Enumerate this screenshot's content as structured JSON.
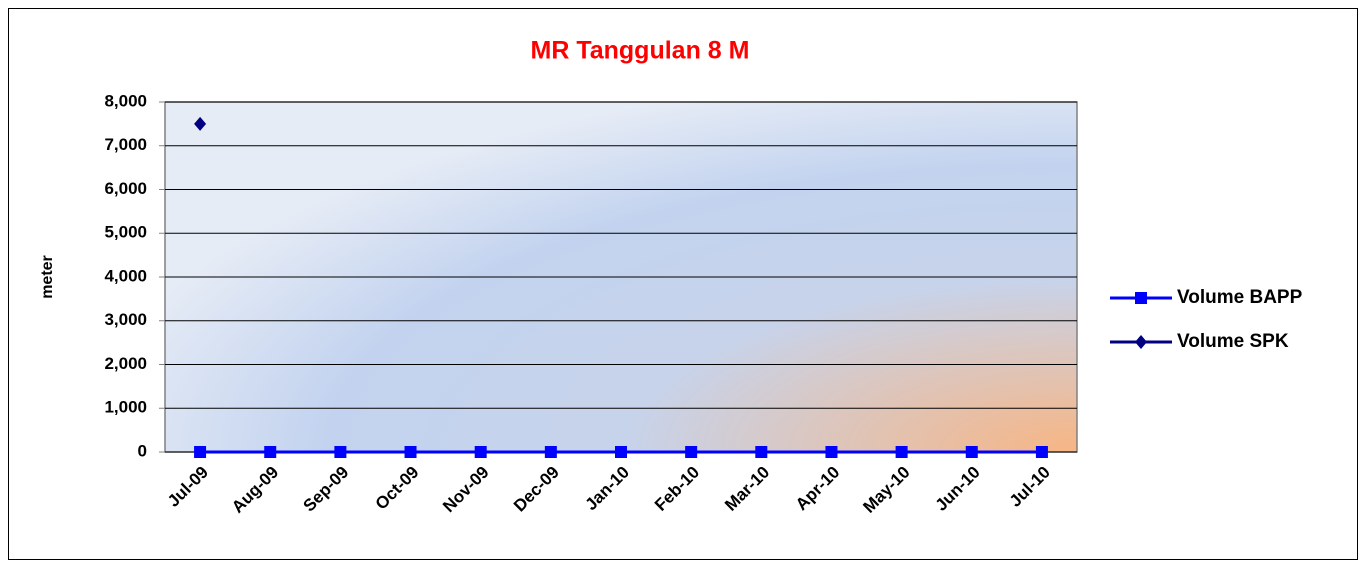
{
  "chart_data": {
    "type": "line",
    "title": "MR Tanggulan 8 M",
    "y_label": "meter",
    "categories": [
      "Jul-09",
      "Aug-09",
      "Sep-09",
      "Oct-09",
      "Nov-09",
      "Dec-09",
      "Jan-10",
      "Feb-10",
      "Mar-10",
      "Apr-10",
      "May-10",
      "Jun-10",
      "Jul-10"
    ],
    "series": [
      {
        "name": "Volume BAPP",
        "color": "#0000ff",
        "marker": "square",
        "values": [
          0,
          0,
          0,
          0,
          0,
          0,
          0,
          0,
          0,
          0,
          0,
          0,
          0
        ]
      },
      {
        "name": "Volume SPK",
        "color": "#000080",
        "marker": "diamond",
        "values": [
          7500,
          null,
          null,
          null,
          null,
          null,
          null,
          null,
          null,
          null,
          null,
          null,
          null
        ]
      }
    ],
    "ylim": [
      0,
      8000
    ],
    "yticks": [
      0,
      {
        "value": 1000,
        "label": "1,000"
      },
      {
        "value": 2000,
        "label": "2,000"
      },
      {
        "value": 3000,
        "label": "3,000"
      },
      {
        "value": 4000,
        "label": "4,000"
      },
      {
        "value": 5000,
        "label": "5,000"
      },
      {
        "value": 6000,
        "label": "6,000"
      },
      {
        "value": 7000,
        "label": "7,000"
      },
      {
        "value": 8000,
        "label": "8,000"
      }
    ],
    "grid": true,
    "legend": "right"
  }
}
